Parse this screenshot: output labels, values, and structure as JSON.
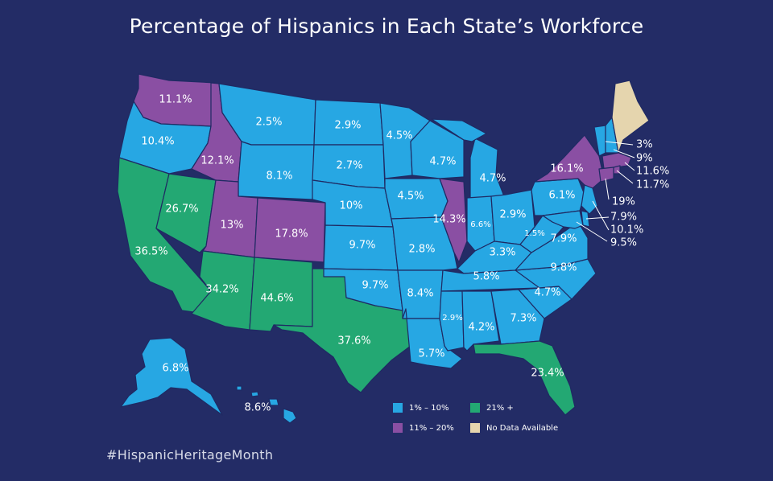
{
  "title": "Percentage of Hispanics  in Each State’s Workforce",
  "hashtag": "#HispanicHeritageMonth",
  "colors": {
    "background": "#232c66",
    "low": "#27a7e3",
    "mid": "#8a4fa3",
    "high": "#23a873",
    "none": "#e5d5ae",
    "border": "#1f2a63"
  },
  "legend": [
    {
      "key": "low",
      "label": "1% – 10%"
    },
    {
      "key": "high",
      "label": "21% +"
    },
    {
      "key": "mid",
      "label": "11% – 20%"
    },
    {
      "key": "none",
      "label": "No Data Available"
    }
  ],
  "states": [
    {
      "name": "Washington",
      "value": "11.1%",
      "cat": "mid"
    },
    {
      "name": "Oregon",
      "value": "10.4%",
      "cat": "low"
    },
    {
      "name": "California",
      "value": "36.5%",
      "cat": "high"
    },
    {
      "name": "Nevada",
      "value": "26.7%",
      "cat": "high"
    },
    {
      "name": "Idaho",
      "value": "12.1%",
      "cat": "mid"
    },
    {
      "name": "Montana",
      "value": "2.5%",
      "cat": "low"
    },
    {
      "name": "Wyoming",
      "value": "8.1%",
      "cat": "low"
    },
    {
      "name": "Utah",
      "value": "13%",
      "cat": "mid"
    },
    {
      "name": "Colorado",
      "value": "17.8%",
      "cat": "mid"
    },
    {
      "name": "Arizona",
      "value": "34.2%",
      "cat": "high"
    },
    {
      "name": "New Mexico",
      "value": "44.6%",
      "cat": "high"
    },
    {
      "name": "Texas",
      "value": "37.6%",
      "cat": "high"
    },
    {
      "name": "North Dakota",
      "value": "2.9%",
      "cat": "low"
    },
    {
      "name": "South Dakota",
      "value": "2.7%",
      "cat": "low"
    },
    {
      "name": "Nebraska",
      "value": "10%",
      "cat": "low"
    },
    {
      "name": "Kansas",
      "value": "9.7%",
      "cat": "low"
    },
    {
      "name": "Oklahoma",
      "value": "9.7%",
      "cat": "low"
    },
    {
      "name": "Minnesota",
      "value": "4.5%",
      "cat": "low"
    },
    {
      "name": "Iowa",
      "value": "4.5%",
      "cat": "low"
    },
    {
      "name": "Missouri",
      "value": "2.8%",
      "cat": "low"
    },
    {
      "name": "Arkansas",
      "value": "8.4%",
      "cat": "low"
    },
    {
      "name": "Louisiana",
      "value": "5.7%",
      "cat": "low"
    },
    {
      "name": "Wisconsin",
      "value": "4.7%",
      "cat": "low"
    },
    {
      "name": "Illinois",
      "value": "14.3%",
      "cat": "mid"
    },
    {
      "name": "Michigan",
      "value": "4.7%",
      "cat": "low"
    },
    {
      "name": "Indiana",
      "value": "6.6%",
      "cat": "low"
    },
    {
      "name": "Ohio",
      "value": "2.9%",
      "cat": "low"
    },
    {
      "name": "Kentucky",
      "value": "3.3%",
      "cat": "low"
    },
    {
      "name": "Tennessee",
      "value": "5.8%",
      "cat": "low"
    },
    {
      "name": "Mississippi",
      "value": "2.9%",
      "cat": "low"
    },
    {
      "name": "Alabama",
      "value": "4.2%",
      "cat": "low"
    },
    {
      "name": "Georgia",
      "value": "7.3%",
      "cat": "low"
    },
    {
      "name": "Florida",
      "value": "23.4%",
      "cat": "high"
    },
    {
      "name": "South Carolina",
      "value": "4.7%",
      "cat": "low"
    },
    {
      "name": "North Carolina",
      "value": "9.8%",
      "cat": "low"
    },
    {
      "name": "Virginia",
      "value": "7.9%",
      "cat": "low"
    },
    {
      "name": "West Virginia",
      "value": "1.5%",
      "cat": "low"
    },
    {
      "name": "Pennsylvania",
      "value": "6.1%",
      "cat": "low"
    },
    {
      "name": "New York",
      "value": "16.1%",
      "cat": "mid"
    },
    {
      "name": "Alaska",
      "value": "6.8%",
      "cat": "low"
    },
    {
      "name": "Hawaii",
      "value": "8.6%",
      "cat": "low"
    },
    {
      "name": "Vermont",
      "value": "3%",
      "cat": "low"
    },
    {
      "name": "New Hampshire",
      "value": "9%",
      "cat": "low"
    },
    {
      "name": "Massachusetts",
      "value": "11.6%",
      "cat": "mid"
    },
    {
      "name": "Rhode Island",
      "value": "11.7%",
      "cat": "mid"
    },
    {
      "name": "Connecticut",
      "value": "19%",
      "cat": "mid"
    },
    {
      "name": "Delaware",
      "value": "7.9%",
      "cat": "low"
    },
    {
      "name": "New Jersey",
      "value": "10.1%",
      "cat": "low"
    },
    {
      "name": "Maryland",
      "value": "9.5%",
      "cat": "low"
    },
    {
      "name": "Maine",
      "value": "",
      "cat": "none"
    }
  ]
}
